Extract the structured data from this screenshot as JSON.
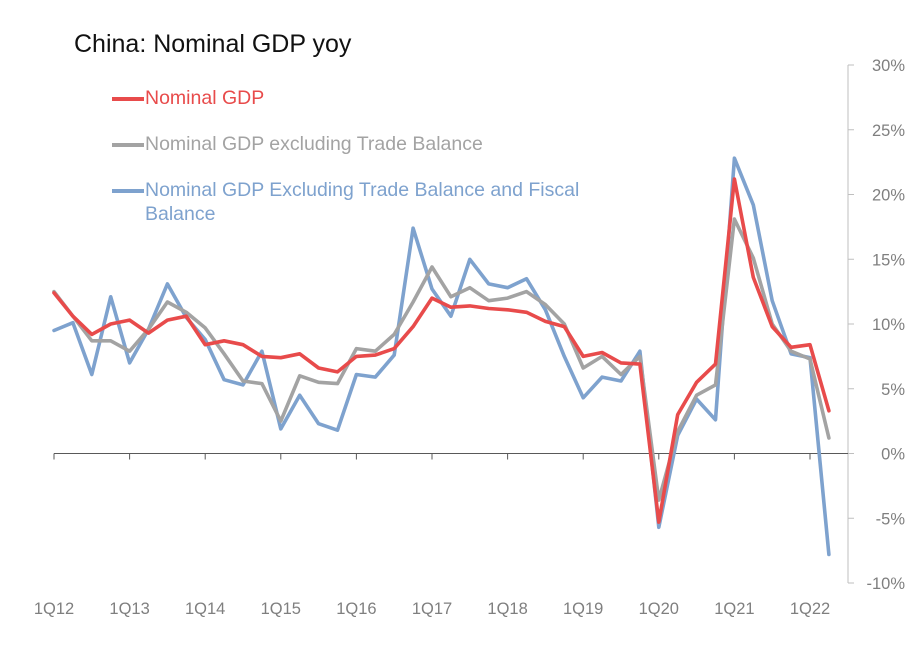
{
  "chart_data": {
    "type": "line",
    "title": "China: Nominal GDP yoy",
    "xlabel": "",
    "ylabel": "",
    "ylim": [
      -10,
      30
    ],
    "y_ticks": [
      30,
      25,
      20,
      15,
      10,
      5,
      0,
      -5,
      -10
    ],
    "y_tick_labels": [
      "30%",
      "25%",
      "20%",
      "15%",
      "10%",
      "5%",
      "0%",
      "-5%",
      "-10%"
    ],
    "y_axis_side": "right",
    "x_tick_labels": [
      "1Q12",
      "1Q13",
      "1Q14",
      "1Q15",
      "1Q16",
      "1Q17",
      "1Q18",
      "1Q19",
      "1Q20",
      "1Q21",
      "1Q22"
    ],
    "quarters_per_label": 4,
    "legend_position": "top-left",
    "series": [
      {
        "name": "Nominal GDP",
        "color": "#e84b4b",
        "values": [
          12.4,
          10.6,
          9.2,
          10.0,
          10.3,
          9.3,
          10.3,
          10.6,
          8.4,
          8.7,
          8.4,
          7.5,
          7.4,
          7.7,
          6.6,
          6.3,
          7.5,
          7.6,
          8.1,
          9.8,
          12.0,
          11.3,
          11.4,
          11.2,
          11.1,
          10.9,
          10.2,
          9.8,
          7.5,
          7.8,
          7.0,
          6.9,
          -5.3,
          3.0,
          5.5,
          6.9,
          21.2,
          13.6,
          9.8,
          8.2,
          8.4,
          3.3
        ]
      },
      {
        "name": "Nominal GDP excluding Trade Balance",
        "color": "#a3a3a3",
        "values": [
          12.5,
          10.6,
          8.7,
          8.7,
          7.9,
          9.6,
          11.7,
          10.9,
          9.7,
          7.7,
          5.6,
          5.4,
          2.5,
          6.0,
          5.5,
          5.4,
          8.1,
          7.9,
          9.2,
          11.7,
          14.4,
          12.1,
          12.8,
          11.8,
          12.0,
          12.5,
          11.5,
          10.0,
          6.6,
          7.5,
          6.1,
          7.5,
          -3.6,
          1.7,
          4.5,
          5.3,
          18.1,
          15.1,
          10.0,
          7.9,
          7.3,
          1.2
        ]
      },
      {
        "name": "Nominal GDP Excluding Trade Balance and Fiscal Balance",
        "color": "#7ea2ce",
        "values": [
          9.5,
          10.1,
          6.1,
          12.1,
          7.0,
          9.6,
          13.1,
          10.5,
          8.8,
          5.7,
          5.3,
          7.9,
          1.9,
          4.5,
          2.3,
          1.8,
          6.1,
          5.9,
          7.6,
          17.4,
          12.7,
          10.6,
          15.0,
          13.1,
          12.8,
          13.5,
          11.1,
          7.5,
          4.3,
          5.9,
          5.6,
          7.9,
          -5.7,
          1.4,
          4.2,
          2.6,
          22.8,
          19.2,
          11.8,
          7.7,
          7.4,
          -7.8
        ]
      }
    ]
  }
}
